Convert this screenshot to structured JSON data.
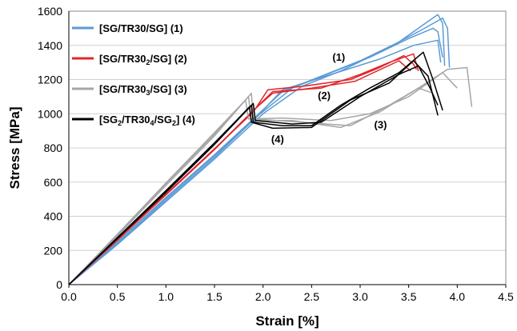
{
  "chart_data": {
    "type": "line",
    "title": "",
    "xlabel": "Strain [%]",
    "ylabel": "Stress [MPa]",
    "xlim": [
      0,
      4.5
    ],
    "ylim": [
      0,
      1600
    ],
    "xticks": [
      "0.0",
      "0.5",
      "1.0",
      "1.5",
      "2.0",
      "2.5",
      "3.0",
      "3.5",
      "4.0",
      "4.5"
    ],
    "yticks": [
      "0",
      "200",
      "400",
      "600",
      "800",
      "1000",
      "1200",
      "1400",
      "1600"
    ],
    "grid": "horizontal",
    "legend_position": "top-left",
    "series": [
      {
        "name": "[SG/TR30/SG] (1)",
        "legend_parts": [
          {
            "t": "[SG/TR30/SG] (1)",
            "sub": false
          }
        ],
        "color": "#5b9bd5",
        "curves": [
          {
            "x": [
              0,
              0.5,
              1.0,
              1.5,
              1.9,
              2.2,
              2.6,
              3.0,
              3.4,
              3.7,
              3.8,
              3.85,
              3.87
            ],
            "y": [
              0,
              250,
              510,
              760,
              970,
              1130,
              1220,
              1310,
              1420,
              1540,
              1580,
              1530,
              1280
            ]
          },
          {
            "x": [
              0,
              0.5,
              1.0,
              1.5,
              1.95,
              2.3,
              2.7,
              3.1,
              3.5,
              3.75,
              3.8,
              3.85
            ],
            "y": [
              0,
              240,
              495,
              745,
              990,
              1150,
              1240,
              1330,
              1440,
              1500,
              1480,
              1330
            ]
          },
          {
            "x": [
              0,
              0.5,
              1.0,
              1.5,
              2.0,
              2.4,
              2.8,
              3.2,
              3.6,
              3.85,
              3.9,
              3.92
            ],
            "y": [
              0,
              235,
              485,
              735,
              1000,
              1160,
              1250,
              1360,
              1480,
              1560,
              1500,
              1270
            ]
          },
          {
            "x": [
              0,
              0.5,
              1.0,
              1.5,
              1.9,
              2.2,
              2.7,
              3.2,
              3.55,
              3.8,
              3.83
            ],
            "y": [
              0,
              250,
              505,
              755,
              960,
              1140,
              1230,
              1320,
              1400,
              1430,
              1300
            ]
          }
        ]
      },
      {
        "name": "[SG/TR302/SG] (2)",
        "legend_parts": [
          {
            "t": "[SG/TR30",
            "sub": false
          },
          {
            "t": "2",
            "sub": true
          },
          {
            "t": "/SG] (2)",
            "sub": false
          }
        ],
        "color": "#e0262c",
        "curves": [
          {
            "x": [
              0,
              0.5,
              1.0,
              1.5,
              1.9,
              2.05,
              2.4,
              2.9,
              3.2,
              3.45,
              3.55,
              3.58
            ],
            "y": [
              0,
              265,
              530,
              795,
              1010,
              1140,
              1160,
              1200,
              1270,
              1340,
              1290,
              1260
            ]
          },
          {
            "x": [
              0,
              0.5,
              1.0,
              1.5,
              1.92,
              2.1,
              2.6,
              3.0,
              3.3,
              3.55,
              3.6
            ],
            "y": [
              0,
              260,
              525,
              790,
              1030,
              1130,
              1150,
              1230,
              1300,
              1350,
              1250
            ]
          },
          {
            "x": [
              0,
              0.5,
              1.0,
              1.5,
              1.9,
              2.1,
              2.5,
              2.95,
              3.4,
              3.52
            ],
            "y": [
              0,
              262,
              528,
              793,
              1020,
              1120,
              1150,
              1190,
              1310,
              1250
            ]
          }
        ]
      },
      {
        "name": "[SG/TR303/SG] (3)",
        "legend_parts": [
          {
            "t": "[SG/TR30",
            "sub": false
          },
          {
            "t": "3",
            "sub": true
          },
          {
            "t": "/SG] (3)",
            "sub": false
          }
        ],
        "color": "#a6a6a6",
        "curves": [
          {
            "x": [
              0,
              0.5,
              1.0,
              1.5,
              1.85,
              1.88,
              2.3,
              2.8,
              3.2,
              3.6,
              3.9,
              4.1,
              4.15
            ],
            "y": [
              0,
              290,
              590,
              880,
              1100,
              960,
              960,
              920,
              1010,
              1150,
              1260,
              1270,
              1040
            ]
          },
          {
            "x": [
              0,
              0.5,
              1.0,
              1.5,
              1.88,
              1.9,
              2.4,
              2.9,
              3.3,
              3.6,
              3.75
            ],
            "y": [
              0,
              285,
              580,
              870,
              1120,
              970,
              950,
              930,
              1050,
              1150,
              1120
            ]
          },
          {
            "x": [
              0,
              0.5,
              1.0,
              1.5,
              1.82,
              1.85,
              2.2,
              2.7,
              3.1,
              3.5,
              3.85,
              4.0
            ],
            "y": [
              0,
              295,
              595,
              890,
              1080,
              970,
              975,
              960,
              1000,
              1100,
              1240,
              1150
            ]
          }
        ]
      },
      {
        "name": "[SG2/TR304/SG2] (4)",
        "legend_parts": [
          {
            "t": "[SG",
            "sub": false
          },
          {
            "t": "2",
            "sub": true
          },
          {
            "t": "/TR30",
            "sub": false
          },
          {
            "t": "4",
            "sub": true
          },
          {
            "t": "/SG",
            "sub": false
          },
          {
            "t": "2",
            "sub": true
          },
          {
            "t": "] (4)",
            "sub": false
          }
        ],
        "color": "#000000",
        "curves": [
          {
            "x": [
              0,
              0.5,
              1.0,
              1.5,
              1.88,
              1.9,
              2.2,
              2.5,
              2.8,
              3.1,
              3.4,
              3.65,
              3.75,
              3.85
            ],
            "y": [
              0,
              275,
              550,
              830,
              1050,
              950,
              930,
              930,
              1050,
              1150,
              1240,
              1360,
              1200,
              1020
            ]
          },
          {
            "x": [
              0,
              0.5,
              1.0,
              1.5,
              1.86,
              1.88,
              2.1,
              2.5,
              2.9,
              3.3,
              3.55,
              3.7,
              3.8
            ],
            "y": [
              0,
              272,
              545,
              825,
              1040,
              950,
              915,
              920,
              1080,
              1180,
              1310,
              1220,
              990
            ]
          },
          {
            "x": [
              0,
              0.5,
              1.0,
              1.5,
              1.9,
              1.92,
              2.3,
              2.6,
              3.0,
              3.4,
              3.6,
              3.72,
              3.8
            ],
            "y": [
              0,
              270,
              540,
              820,
              1060,
              960,
              940,
              950,
              1100,
              1230,
              1280,
              1150,
              1050
            ]
          }
        ]
      }
    ],
    "annotations": [
      {
        "text": "(1)",
        "x": 2.78,
        "y": 1310
      },
      {
        "text": "(2)",
        "x": 2.63,
        "y": 1085
      },
      {
        "text": "(3)",
        "x": 3.21,
        "y": 915
      },
      {
        "text": "(4)",
        "x": 2.15,
        "y": 830
      }
    ]
  }
}
